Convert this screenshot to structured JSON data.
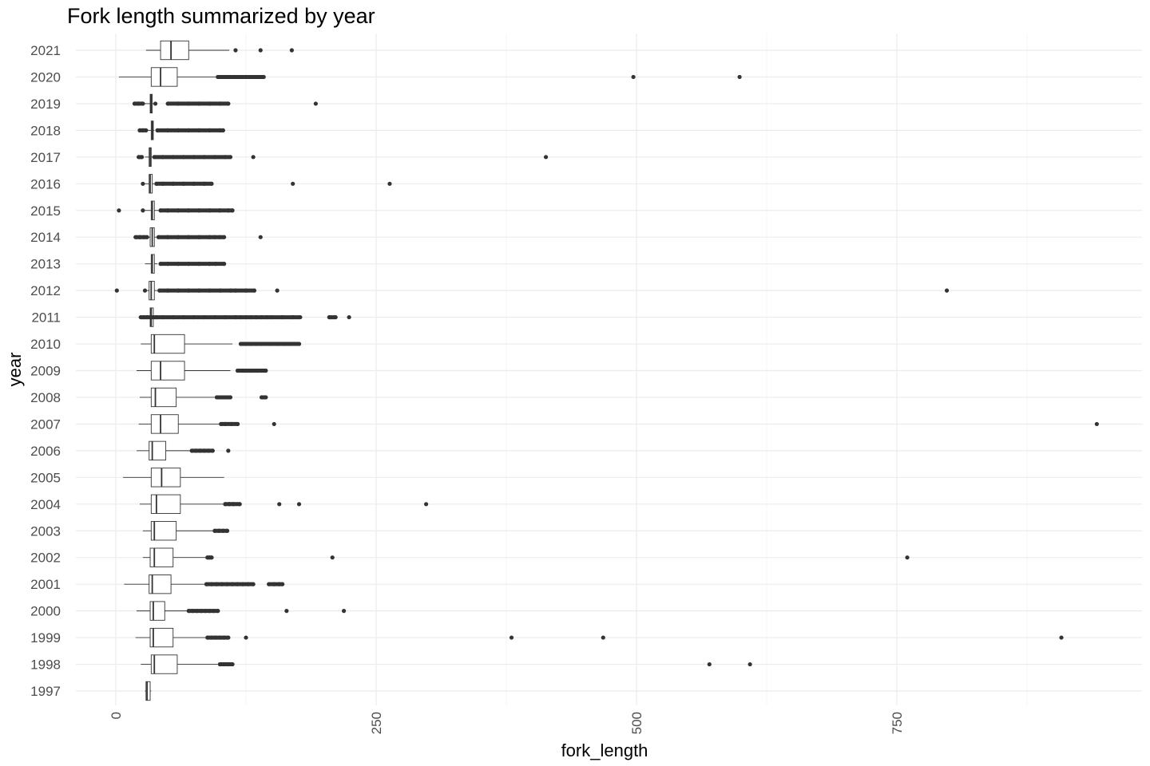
{
  "chart_data": {
    "type": "boxplot",
    "orientation": "horizontal",
    "title": "Fork length summarized by year",
    "xlabel": "fork_length",
    "ylabel": "year",
    "xlim": [
      -35,
      985
    ],
    "xticks": [
      0,
      250,
      500,
      750
    ],
    "grid": true,
    "legend": "none",
    "colors": {
      "box_stroke": "#333333",
      "box_fill": "#ffffff",
      "outlier": "#333333",
      "grid_major": "#ebebeb",
      "grid_minor": "#f5f5f5"
    },
    "categories": [
      "1997",
      "1998",
      "1999",
      "2000",
      "2001",
      "2002",
      "2003",
      "2004",
      "2005",
      "2006",
      "2007",
      "2008",
      "2009",
      "2010",
      "2011",
      "2012",
      "2013",
      "2014",
      "2015",
      "2016",
      "2017",
      "2018",
      "2019",
      "2020",
      "2021"
    ],
    "boxes": [
      {
        "year": "1997",
        "whisker_low": 28,
        "q1": 29,
        "median": 30,
        "q3": 33,
        "whisker_high": 34,
        "outliers": []
      },
      {
        "year": "1998",
        "whisker_low": 24,
        "q1": 34,
        "median": 37,
        "q3": 59,
        "whisker_high": 98,
        "outliers": [
          100,
          104,
          108,
          112,
          570,
          609
        ]
      },
      {
        "year": "1999",
        "whisker_low": 19,
        "q1": 33,
        "median": 36,
        "q3": 55,
        "whisker_high": 86,
        "outliers": [
          88,
          92,
          96,
          100,
          104,
          108,
          125,
          380,
          468,
          908
        ]
      },
      {
        "year": "2000",
        "whisker_low": 20,
        "q1": 33,
        "median": 36,
        "q3": 47,
        "whisker_high": 68,
        "outliers": [
          70,
          74,
          78,
          82,
          86,
          90,
          94,
          98,
          164,
          219
        ]
      },
      {
        "year": "2001",
        "whisker_low": 8,
        "q1": 32,
        "median": 35,
        "q3": 53,
        "whisker_high": 85,
        "outliers": [
          87,
          92,
          97,
          102,
          107,
          112,
          117,
          122,
          127,
          132,
          147,
          152,
          157,
          160
        ]
      },
      {
        "year": "2002",
        "whisker_low": 26,
        "q1": 33,
        "median": 37,
        "q3": 55,
        "whisker_high": 86,
        "outliers": [
          88,
          90,
          92,
          208,
          760
        ]
      },
      {
        "year": "2003",
        "whisker_low": 26,
        "q1": 34,
        "median": 37,
        "q3": 58,
        "whisker_high": 93,
        "outliers": [
          95,
          99,
          103,
          107
        ]
      },
      {
        "year": "2004",
        "whisker_low": 23,
        "q1": 34,
        "median": 39,
        "q3": 62,
        "whisker_high": 103,
        "outliers": [
          105,
          109,
          113,
          119,
          157,
          176,
          298
        ]
      },
      {
        "year": "2005",
        "whisker_low": 7,
        "q1": 34,
        "median": 44,
        "q3": 62,
        "whisker_high": 104,
        "outliers": []
      },
      {
        "year": "2006",
        "whisker_low": 20,
        "q1": 32,
        "median": 35,
        "q3": 48,
        "whisker_high": 71,
        "outliers": [
          73,
          77,
          81,
          85,
          89,
          93,
          108
        ]
      },
      {
        "year": "2007",
        "whisker_low": 22,
        "q1": 34,
        "median": 43,
        "q3": 60,
        "whisker_high": 99,
        "outliers": [
          101,
          105,
          111,
          117,
          152,
          942
        ]
      },
      {
        "year": "2008",
        "whisker_low": 23,
        "q1": 34,
        "median": 38,
        "q3": 58,
        "whisker_high": 95,
        "outliers": [
          97,
          101,
          105,
          110,
          140,
          144
        ]
      },
      {
        "year": "2009",
        "whisker_low": 20,
        "q1": 34,
        "median": 43,
        "q3": 66,
        "whisker_high": 110,
        "outliers": [
          117,
          124,
          130,
          136,
          140,
          144
        ]
      },
      {
        "year": "2010",
        "whisker_low": 24,
        "q1": 34,
        "median": 37,
        "q3": 66,
        "whisker_high": 112,
        "outliers": [
          120,
          125,
          130,
          135,
          140,
          148,
          155,
          162,
          166,
          176
        ]
      },
      {
        "year": "2011",
        "whisker_low": 22,
        "q1": 33,
        "median": 34,
        "q3": 36,
        "whisker_high": 37,
        "outliers": [
          24,
          27,
          30,
          39,
          45,
          55,
          65,
          75,
          85,
          95,
          105,
          115,
          120,
          125,
          130,
          135,
          140,
          145,
          150,
          160,
          170,
          177,
          205,
          211,
          224
        ]
      },
      {
        "year": "2012",
        "whisker_low": 26,
        "q1": 32,
        "median": 34,
        "q3": 37,
        "whisker_high": 40,
        "outliers": [
          1,
          28,
          42,
          50,
          60,
          70,
          80,
          90,
          100,
          110,
          115,
          125,
          133,
          155,
          798
        ]
      },
      {
        "year": "2013",
        "whisker_low": 28,
        "q1": 34,
        "median": 35,
        "q3": 37,
        "whisker_high": 40,
        "outliers": [
          43,
          50,
          60,
          70,
          80,
          90,
          96,
          104
        ]
      },
      {
        "year": "2014",
        "whisker_low": 25,
        "q1": 33,
        "median": 35,
        "q3": 37,
        "whisker_high": 39,
        "outliers": [
          19,
          23,
          27,
          30,
          41,
          50,
          60,
          70,
          80,
          90,
          95,
          100,
          104,
          139
        ]
      },
      {
        "year": "2015",
        "whisker_low": 28,
        "q1": 34,
        "median": 35,
        "q3": 37,
        "whisker_high": 41,
        "outliers": [
          3,
          26,
          43,
          50,
          60,
          70,
          80,
          90,
          100,
          108,
          112
        ]
      },
      {
        "year": "2016",
        "whisker_low": 28,
        "q1": 32,
        "median": 33,
        "q3": 35,
        "whisker_high": 37,
        "outliers": [
          26,
          39,
          45,
          55,
          65,
          75,
          85,
          92,
          170,
          263
        ]
      },
      {
        "year": "2017",
        "whisker_low": 28,
        "q1": 32,
        "median": 33,
        "q3": 34,
        "whisker_high": 35,
        "outliers": [
          22,
          25,
          37,
          45,
          55,
          65,
          75,
          85,
          95,
          105,
          110,
          132,
          413
        ]
      },
      {
        "year": "2018",
        "whisker_low": 30,
        "q1": 34,
        "median": 35,
        "q3": 36,
        "whisker_high": 37,
        "outliers": [
          23,
          26,
          29,
          40,
          50,
          60,
          70,
          80,
          90,
          100,
          103
        ]
      },
      {
        "year": "2019",
        "whisker_low": 28,
        "q1": 33,
        "median": 34,
        "q3": 35,
        "whisker_high": 36,
        "outliers": [
          18,
          22,
          26,
          38,
          50,
          60,
          70,
          80,
          90,
          100,
          108,
          192
        ]
      },
      {
        "year": "2020",
        "whisker_low": 3,
        "q1": 34,
        "median": 43,
        "q3": 59,
        "whisker_high": 96,
        "outliers": [
          98,
          102,
          106,
          110,
          114,
          120,
          126,
          132,
          138,
          142,
          497,
          599
        ]
      },
      {
        "year": "2021",
        "whisker_low": 29,
        "q1": 43,
        "median": 53,
        "q3": 70,
        "whisker_high": 109,
        "outliers": [
          115,
          139,
          169
        ]
      }
    ]
  }
}
